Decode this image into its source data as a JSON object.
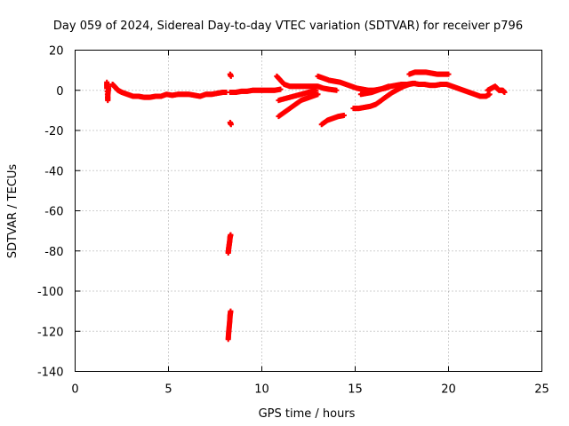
{
  "chart_data": {
    "type": "scatter",
    "title": "Day 059 of 2024, Sidereal Day-to-day VTEC variation (SDTVAR) for receiver p796",
    "xlabel": "GPS time / hours",
    "ylabel": "SDTVAR / TECUs",
    "xlim": [
      0,
      25
    ],
    "ylim": [
      -140,
      20
    ],
    "xticks": [
      0,
      5,
      10,
      15,
      20,
      25
    ],
    "yticks": [
      20,
      0,
      -20,
      -40,
      -60,
      -80,
      -100,
      -120,
      -140
    ],
    "grid": true,
    "marker": "plus",
    "series_color": "#ff0000",
    "segments": [
      {
        "name": "early-low",
        "points": [
          [
            1.7,
            1
          ],
          [
            1.7,
            4
          ],
          [
            1.75,
            -5
          ],
          [
            1.75,
            -3
          ],
          [
            1.8,
            2
          ]
        ]
      },
      {
        "name": "early-main",
        "points": [
          [
            2.0,
            3
          ],
          [
            2.1,
            2
          ],
          [
            2.2,
            1
          ],
          [
            2.3,
            0
          ],
          [
            2.5,
            -1
          ],
          [
            2.8,
            -2
          ],
          [
            3.1,
            -3
          ],
          [
            3.4,
            -3
          ],
          [
            3.7,
            -3.5
          ],
          [
            4.0,
            -3.5
          ],
          [
            4.3,
            -3
          ],
          [
            4.6,
            -3
          ],
          [
            4.9,
            -2
          ],
          [
            5.2,
            -2.5
          ],
          [
            5.5,
            -2
          ],
          [
            5.8,
            -2
          ],
          [
            6.1,
            -2
          ],
          [
            6.4,
            -2.5
          ],
          [
            6.7,
            -3
          ],
          [
            7.0,
            -2
          ],
          [
            7.3,
            -2
          ],
          [
            7.6,
            -1.5
          ],
          [
            7.9,
            -1
          ],
          [
            8.1,
            -1
          ]
        ]
      },
      {
        "name": "mid-low",
        "points": [
          [
            8.3,
            -1
          ],
          [
            8.6,
            -1
          ],
          [
            8.9,
            -0.5
          ],
          [
            9.2,
            -0.5
          ],
          [
            9.5,
            0
          ],
          [
            9.8,
            0
          ],
          [
            10.1,
            0
          ],
          [
            10.4,
            0
          ],
          [
            10.7,
            0
          ],
          [
            11.0,
            0.5
          ]
        ]
      },
      {
        "name": "outlier-high",
        "points": [
          [
            8.3,
            8
          ],
          [
            8.35,
            7
          ]
        ]
      },
      {
        "name": "outlier-low",
        "points": [
          [
            8.3,
            -16
          ],
          [
            8.35,
            -17
          ]
        ]
      },
      {
        "name": "drop-a",
        "points": [
          [
            8.2,
            -81
          ],
          [
            8.22,
            -79
          ],
          [
            8.25,
            -77
          ],
          [
            8.28,
            -75
          ],
          [
            8.3,
            -73
          ],
          [
            8.33,
            -72
          ]
        ]
      },
      {
        "name": "drop-b",
        "points": [
          [
            8.2,
            -124
          ],
          [
            8.22,
            -121
          ],
          [
            8.25,
            -118
          ],
          [
            8.28,
            -115
          ],
          [
            8.3,
            -112
          ],
          [
            8.33,
            -110
          ]
        ]
      },
      {
        "name": "arc-1",
        "points": [
          [
            10.8,
            7
          ],
          [
            11.0,
            5
          ],
          [
            11.2,
            3
          ],
          [
            11.5,
            2
          ],
          [
            11.8,
            2
          ],
          [
            12.1,
            2
          ],
          [
            12.4,
            2
          ],
          [
            12.7,
            2
          ],
          [
            13.0,
            2
          ],
          [
            13.3,
            1
          ],
          [
            13.6,
            0.5
          ],
          [
            14.0,
            0
          ]
        ]
      },
      {
        "name": "arc-2",
        "points": [
          [
            10.9,
            -13
          ],
          [
            11.2,
            -11
          ],
          [
            11.5,
            -9
          ],
          [
            11.8,
            -7
          ],
          [
            12.1,
            -5
          ],
          [
            12.4,
            -4
          ],
          [
            12.7,
            -3
          ],
          [
            13.0,
            -2
          ]
        ]
      },
      {
        "name": "arc-3",
        "points": [
          [
            10.9,
            -5
          ],
          [
            11.3,
            -4
          ],
          [
            11.7,
            -3
          ],
          [
            12.1,
            -2
          ],
          [
            12.5,
            -1
          ],
          [
            12.9,
            0
          ]
        ]
      },
      {
        "name": "arc-4",
        "points": [
          [
            13.0,
            7
          ],
          [
            13.3,
            6
          ],
          [
            13.6,
            5
          ],
          [
            13.9,
            4.5
          ],
          [
            14.2,
            4
          ],
          [
            14.5,
            3
          ],
          [
            14.8,
            2
          ],
          [
            15.1,
            1
          ],
          [
            15.4,
            0.5
          ],
          [
            15.7,
            0
          ],
          [
            16.0,
            0
          ],
          [
            16.3,
            0.5
          ],
          [
            16.6,
            1
          ],
          [
            16.9,
            2
          ],
          [
            17.2,
            2.5
          ],
          [
            17.5,
            3
          ],
          [
            17.8,
            3
          ],
          [
            18.1,
            3.5
          ],
          [
            18.4,
            3
          ],
          [
            18.7,
            3
          ],
          [
            19.0,
            2.5
          ],
          [
            19.3,
            2.5
          ],
          [
            19.6,
            3
          ],
          [
            19.9,
            3
          ],
          [
            20.2,
            2
          ],
          [
            20.5,
            1
          ],
          [
            20.8,
            0
          ],
          [
            21.1,
            -1
          ],
          [
            21.4,
            -2
          ],
          [
            21.7,
            -3
          ],
          [
            22.0,
            -3
          ],
          [
            22.2,
            -2
          ]
        ]
      },
      {
        "name": "arc-5",
        "points": [
          [
            13.2,
            -17
          ],
          [
            13.5,
            -15
          ],
          [
            13.8,
            -14
          ],
          [
            14.1,
            -13
          ],
          [
            14.4,
            -12.5
          ]
        ]
      },
      {
        "name": "arc-6",
        "points": [
          [
            14.9,
            -9
          ],
          [
            15.2,
            -9
          ],
          [
            15.5,
            -8.5
          ],
          [
            15.8,
            -8
          ],
          [
            16.1,
            -7
          ],
          [
            16.4,
            -5
          ],
          [
            16.7,
            -3
          ],
          [
            17.0,
            -1
          ],
          [
            17.3,
            0.5
          ],
          [
            17.6,
            2
          ],
          [
            17.9,
            3
          ],
          [
            18.2,
            3.5
          ]
        ]
      },
      {
        "name": "arc-7",
        "points": [
          [
            15.3,
            -2
          ],
          [
            15.6,
            -1.5
          ],
          [
            15.9,
            -1
          ],
          [
            16.2,
            0
          ],
          [
            16.5,
            1
          ],
          [
            16.8,
            2
          ]
        ]
      },
      {
        "name": "arc-8",
        "points": [
          [
            17.9,
            8
          ],
          [
            18.2,
            9
          ],
          [
            18.5,
            9
          ],
          [
            18.8,
            9
          ],
          [
            19.1,
            8.5
          ],
          [
            19.4,
            8
          ],
          [
            19.7,
            8
          ],
          [
            20.0,
            8
          ]
        ]
      },
      {
        "name": "tail",
        "points": [
          [
            22.1,
            0
          ],
          [
            22.3,
            1
          ],
          [
            22.5,
            2
          ],
          [
            22.7,
            0
          ],
          [
            22.9,
            0
          ],
          [
            23.0,
            -1
          ]
        ]
      }
    ]
  }
}
